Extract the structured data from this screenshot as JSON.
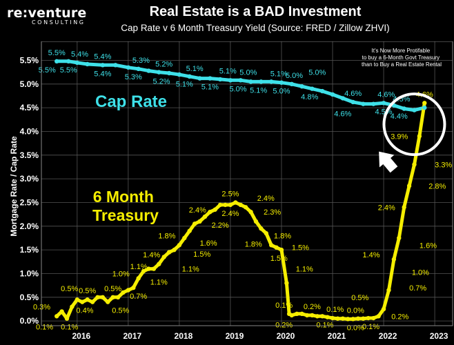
{
  "brand": {
    "name": "re:venture",
    "sub": "CONSULTING"
  },
  "chart_data": {
    "type": "line",
    "title": "Real Estate is a BAD Investment",
    "subtitle": "Cap Rate v 6 Month Treasury Yield (Source: FRED / Zillow ZHVI)",
    "xlabel": "",
    "ylabel": "Mortgage Rate / Cap Rate",
    "xlim": [
      2015.3,
      2023.35
    ],
    "ylim": [
      -0.1,
      5.9
    ],
    "x_ticks": [
      2016,
      2017,
      2018,
      2019,
      2020,
      2021,
      2022,
      2023
    ],
    "y_ticks": [
      0.0,
      0.5,
      1.0,
      1.5,
      2.0,
      2.5,
      3.0,
      3.5,
      4.0,
      4.5,
      5.0,
      5.5
    ],
    "y_tick_labels": [
      "0.0%",
      "0.5%",
      "1.0%",
      "1.5%",
      "2.0%",
      "2.5%",
      "3.0%",
      "3.5%",
      "4.0%",
      "4.5%",
      "5.0%",
      "5.5%"
    ],
    "series": [
      {
        "name": "Cap Rate",
        "label_text": "Cap Rate",
        "color": "#3ee0e8",
        "x": [
          2015.6,
          2015.83,
          2016.0,
          2016.2,
          2016.5,
          2016.75,
          2017.0,
          2017.2,
          2017.4,
          2017.6,
          2017.8,
          2018.0,
          2018.2,
          2018.4,
          2018.6,
          2018.8,
          2019.0,
          2019.2,
          2019.4,
          2019.6,
          2019.8,
          2020.0,
          2020.2,
          2020.4,
          2020.6,
          2020.8,
          2021.0,
          2021.2,
          2021.4,
          2021.6,
          2021.8,
          2022.0,
          2022.2,
          2022.4,
          2022.6,
          2022.8
        ],
        "values": [
          5.48,
          5.48,
          5.45,
          5.42,
          5.4,
          5.4,
          5.35,
          5.32,
          5.28,
          5.25,
          5.23,
          5.2,
          5.16,
          5.12,
          5.12,
          5.1,
          5.08,
          5.08,
          5.05,
          5.05,
          5.05,
          5.03,
          5.0,
          4.95,
          4.9,
          4.85,
          4.78,
          4.7,
          4.62,
          4.58,
          4.58,
          4.6,
          4.55,
          4.48,
          4.45,
          4.5
        ]
      },
      {
        "name": "6 Month Treasury",
        "label_text": "6 Month Treasury",
        "color": "#f5ee00",
        "x": [
          2015.6,
          2015.7,
          2015.8,
          2015.9,
          2016.0,
          2016.1,
          2016.2,
          2016.3,
          2016.4,
          2016.5,
          2016.6,
          2016.7,
          2016.8,
          2016.9,
          2017.0,
          2017.1,
          2017.2,
          2017.3,
          2017.4,
          2017.5,
          2017.6,
          2017.7,
          2017.8,
          2017.9,
          2018.0,
          2018.1,
          2018.2,
          2018.3,
          2018.4,
          2018.5,
          2018.6,
          2018.7,
          2018.8,
          2018.9,
          2019.0,
          2019.1,
          2019.2,
          2019.3,
          2019.4,
          2019.5,
          2019.6,
          2019.7,
          2019.8,
          2019.9,
          2020.0,
          2020.1,
          2020.15,
          2020.2,
          2020.3,
          2020.4,
          2020.5,
          2020.6,
          2020.7,
          2020.8,
          2020.9,
          2021.0,
          2021.1,
          2021.2,
          2021.3,
          2021.4,
          2021.5,
          2021.6,
          2021.7,
          2021.8,
          2021.9,
          2022.0,
          2022.1,
          2022.2,
          2022.3,
          2022.4,
          2022.5,
          2022.6,
          2022.7,
          2022.8
        ],
        "values": [
          0.1,
          0.2,
          0.05,
          0.3,
          0.45,
          0.4,
          0.45,
          0.4,
          0.5,
          0.5,
          0.4,
          0.5,
          0.5,
          0.6,
          0.65,
          0.7,
          0.9,
          1.05,
          1.1,
          1.1,
          1.2,
          1.35,
          1.45,
          1.5,
          1.6,
          1.75,
          1.9,
          2.05,
          2.1,
          2.2,
          2.3,
          2.35,
          2.45,
          2.45,
          2.45,
          2.5,
          2.45,
          2.4,
          2.3,
          2.1,
          1.95,
          1.85,
          1.6,
          1.55,
          1.5,
          0.8,
          0.15,
          0.12,
          0.15,
          0.15,
          0.12,
          0.12,
          0.1,
          0.1,
          0.08,
          0.06,
          0.05,
          0.05,
          0.04,
          0.04,
          0.05,
          0.05,
          0.06,
          0.06,
          0.1,
          0.25,
          0.65,
          1.3,
          1.75,
          2.4,
          2.85,
          3.3,
          3.9,
          4.6
        ]
      }
    ],
    "data_labels": [
      {
        "series": "Cap Rate",
        "text": "5.5%",
        "x": 2015.6,
        "y": 5.48,
        "pos": "above"
      },
      {
        "series": "Cap Rate",
        "text": "5.5%",
        "x": 2015.6,
        "y": 5.48,
        "pos": "below-left"
      },
      {
        "series": "Cap Rate",
        "text": "5.5%",
        "x": 2015.83,
        "y": 5.48,
        "pos": "below"
      },
      {
        "series": "Cap Rate",
        "text": "5.4%",
        "x": 2016.05,
        "y": 5.45,
        "pos": "above"
      },
      {
        "series": "Cap Rate",
        "text": "5.4%",
        "x": 2016.5,
        "y": 5.4,
        "pos": "above"
      },
      {
        "series": "Cap Rate",
        "text": "5.4%",
        "x": 2016.5,
        "y": 5.4,
        "pos": "below"
      },
      {
        "series": "Cap Rate",
        "text": "5.3%",
        "x": 2017.25,
        "y": 5.32,
        "pos": "above"
      },
      {
        "series": "Cap Rate",
        "text": "5.3%",
        "x": 2017.1,
        "y": 5.33,
        "pos": "below"
      },
      {
        "series": "Cap Rate",
        "text": "5.2%",
        "x": 2017.7,
        "y": 5.24,
        "pos": "above"
      },
      {
        "series": "Cap Rate",
        "text": "5.2%",
        "x": 2017.65,
        "y": 5.24,
        "pos": "below"
      },
      {
        "series": "Cap Rate",
        "text": "5.1%",
        "x": 2018.3,
        "y": 5.14,
        "pos": "above"
      },
      {
        "series": "Cap Rate",
        "text": "5.1%",
        "x": 2018.1,
        "y": 5.18,
        "pos": "below"
      },
      {
        "series": "Cap Rate",
        "text": "5.1%",
        "x": 2018.95,
        "y": 5.09,
        "pos": "above"
      },
      {
        "series": "Cap Rate",
        "text": "5.1%",
        "x": 2018.6,
        "y": 5.12,
        "pos": "below"
      },
      {
        "series": "Cap Rate",
        "text": "5.0%",
        "x": 2019.35,
        "y": 5.06,
        "pos": "above"
      },
      {
        "series": "Cap Rate",
        "text": "5.0%",
        "x": 2019.15,
        "y": 5.08,
        "pos": "below"
      },
      {
        "series": "Cap Rate",
        "text": "5.1%",
        "x": 2019.55,
        "y": 5.05,
        "pos": "below"
      },
      {
        "series": "Cap Rate",
        "text": "5.1%",
        "x": 2019.95,
        "y": 5.03,
        "pos": "above"
      },
      {
        "series": "Cap Rate",
        "text": "5.0%",
        "x": 2020.25,
        "y": 5.0,
        "pos": "above"
      },
      {
        "series": "Cap Rate",
        "text": "5.0%",
        "x": 2020.0,
        "y": 5.03,
        "pos": "below"
      },
      {
        "series": "Cap Rate",
        "text": "5.0%",
        "x": 2020.7,
        "y": 4.9,
        "pos": "above-high"
      },
      {
        "series": "Cap Rate",
        "text": "4.8%",
        "x": 2020.55,
        "y": 4.91,
        "pos": "below"
      },
      {
        "series": "Cap Rate",
        "text": "4.6%",
        "x": 2021.4,
        "y": 4.62,
        "pos": "above"
      },
      {
        "series": "Cap Rate",
        "text": "4.6%",
        "x": 2021.2,
        "y": 4.7,
        "pos": "below-far"
      },
      {
        "series": "Cap Rate",
        "text": "4.6%",
        "x": 2022.05,
        "y": 4.6,
        "pos": "above"
      },
      {
        "series": "Cap Rate",
        "text": "4.5%",
        "x": 2022.35,
        "y": 4.5,
        "pos": "above"
      },
      {
        "series": "Cap Rate",
        "text": "4.5%",
        "x": 2022.0,
        "y": 4.6,
        "pos": "below"
      },
      {
        "series": "Cap Rate",
        "text": "4.4%",
        "x": 2022.3,
        "y": 4.5,
        "pos": "below"
      },
      {
        "series": "6 Month Treasury",
        "text": "4.6%",
        "x": 2022.8,
        "y": 4.6,
        "pos": "above"
      },
      {
        "series": "6 Month Treasury",
        "text": "3.9%",
        "x": 2022.55,
        "y": 3.9,
        "pos": "left"
      },
      {
        "series": "6 Month Treasury",
        "text": "3.3%",
        "x": 2022.9,
        "y": 3.3,
        "pos": "right"
      },
      {
        "series": "6 Month Treasury",
        "text": "2.8%",
        "x": 2022.78,
        "y": 2.85,
        "pos": "right"
      },
      {
        "series": "6 Month Treasury",
        "text": "2.4%",
        "x": 2022.3,
        "y": 2.4,
        "pos": "left"
      },
      {
        "series": "6 Month Treasury",
        "text": "1.6%",
        "x": 2022.6,
        "y": 1.6,
        "pos": "right"
      },
      {
        "series": "6 Month Treasury",
        "text": "1.4%",
        "x": 2022.0,
        "y": 1.4,
        "pos": "left"
      },
      {
        "series": "6 Month Treasury",
        "text": "1.0%",
        "x": 2022.45,
        "y": 1.03,
        "pos": "right"
      },
      {
        "series": "6 Month Treasury",
        "text": "0.7%",
        "x": 2022.4,
        "y": 0.7,
        "pos": "right"
      },
      {
        "series": "6 Month Treasury",
        "text": "0.5%",
        "x": 2021.78,
        "y": 0.5,
        "pos": "left"
      },
      {
        "series": "6 Month Treasury",
        "text": "0.2%",
        "x": 2022.05,
        "y": 0.1,
        "pos": "right"
      },
      {
        "series": "6 Month Treasury",
        "text": "0.1%",
        "x": 2021.75,
        "y": 0.06,
        "pos": "below"
      },
      {
        "series": "6 Month Treasury",
        "text": "0.0%",
        "x": 2021.45,
        "y": 0.04,
        "pos": "below"
      },
      {
        "series": "6 Month Treasury",
        "text": "0.0%",
        "x": 2021.45,
        "y": 0.04,
        "pos": "above"
      },
      {
        "series": "6 Month Treasury",
        "text": "0.1%",
        "x": 2021.05,
        "y": 0.06,
        "pos": "above"
      },
      {
        "series": "6 Month Treasury",
        "text": "0.2%",
        "x": 2020.6,
        "y": 0.12,
        "pos": "above"
      },
      {
        "series": "6 Month Treasury",
        "text": "0.1%",
        "x": 2020.85,
        "y": 0.1,
        "pos": "below"
      },
      {
        "series": "6 Month Treasury",
        "text": "0.1%",
        "x": 2020.05,
        "y": 0.15,
        "pos": "above"
      },
      {
        "series": "6 Month Treasury",
        "text": "0.2%",
        "x": 2020.05,
        "y": 0.1,
        "pos": "below"
      },
      {
        "series": "6 Month Treasury",
        "text": "1.1%",
        "x": 2020.18,
        "y": 1.1,
        "pos": "right"
      },
      {
        "series": "6 Month Treasury",
        "text": "1.5%",
        "x": 2020.1,
        "y": 1.55,
        "pos": "right"
      },
      {
        "series": "6 Month Treasury",
        "text": "1.5%",
        "x": 2019.95,
        "y": 1.5,
        "pos": "below"
      },
      {
        "series": "6 Month Treasury",
        "text": "1.8%",
        "x": 2019.75,
        "y": 1.8,
        "pos": "right"
      },
      {
        "series": "6 Month Treasury",
        "text": "1.8%",
        "x": 2019.45,
        "y": 1.8,
        "pos": "below"
      },
      {
        "series": "6 Month Treasury",
        "text": "2.3%",
        "x": 2019.55,
        "y": 2.3,
        "pos": "right"
      },
      {
        "series": "6 Month Treasury",
        "text": "2.4%",
        "x": 2019.45,
        "y": 2.45,
        "pos": "right-up"
      },
      {
        "series": "6 Month Treasury",
        "text": "2.5%",
        "x": 2019.0,
        "y": 2.5,
        "pos": "above"
      },
      {
        "series": "6 Month Treasury",
        "text": "2.4%",
        "x": 2019.0,
        "y": 2.45,
        "pos": "below"
      },
      {
        "series": "6 Month Treasury",
        "text": "2.4%",
        "x": 2018.6,
        "y": 2.35,
        "pos": "left"
      },
      {
        "series": "6 Month Treasury",
        "text": "2.2%",
        "x": 2018.8,
        "y": 2.2,
        "pos": "below"
      },
      {
        "series": "6 Month Treasury",
        "text": "1.8%",
        "x": 2018.0,
        "y": 1.8,
        "pos": "left"
      },
      {
        "series": "6 Month Treasury",
        "text": "1.6%",
        "x": 2018.3,
        "y": 1.65,
        "pos": "right"
      },
      {
        "series": "6 Month Treasury",
        "text": "1.5%",
        "x": 2018.2,
        "y": 1.5,
        "pos": "right-low"
      },
      {
        "series": "6 Month Treasury",
        "text": "1.4%",
        "x": 2017.7,
        "y": 1.4,
        "pos": "left"
      },
      {
        "series": "6 Month Treasury",
        "text": "1.1%",
        "x": 2017.45,
        "y": 1.15,
        "pos": "left"
      },
      {
        "series": "6 Month Treasury",
        "text": "1.1%",
        "x": 2017.6,
        "y": 1.0,
        "pos": "below"
      },
      {
        "series": "6 Month Treasury",
        "text": "1.1%",
        "x": 2017.95,
        "y": 1.1,
        "pos": "right"
      },
      {
        "series": "6 Month Treasury",
        "text": "1.0%",
        "x": 2017.1,
        "y": 1.0,
        "pos": "left"
      },
      {
        "series": "6 Month Treasury",
        "text": "0.7%",
        "x": 2017.2,
        "y": 0.7,
        "pos": "below"
      },
      {
        "series": "6 Month Treasury",
        "text": "0.5%",
        "x": 2016.7,
        "y": 0.5,
        "pos": "above"
      },
      {
        "series": "6 Month Treasury",
        "text": "0.5%",
        "x": 2016.85,
        "y": 0.4,
        "pos": "below"
      },
      {
        "series": "6 Month Treasury",
        "text": "0.5%",
        "x": 2016.2,
        "y": 0.45,
        "pos": "above"
      },
      {
        "series": "6 Month Treasury",
        "text": "0.4%",
        "x": 2016.15,
        "y": 0.4,
        "pos": "below"
      },
      {
        "series": "6 Month Treasury",
        "text": "0.5%",
        "x": 2015.85,
        "y": 0.5,
        "pos": "above"
      },
      {
        "series": "6 Month Treasury",
        "text": "0.3%",
        "x": 2015.55,
        "y": 0.3,
        "pos": "left"
      },
      {
        "series": "6 Month Treasury",
        "text": "0.1%",
        "x": 2015.55,
        "y": 0.05,
        "pos": "below-left"
      },
      {
        "series": "6 Month Treasury",
        "text": "0.1%",
        "x": 2015.85,
        "y": 0.05,
        "pos": "below"
      }
    ],
    "annotations": [
      {
        "text_lines": [
          "It's Now More Protifable",
          "to buy a 6-Month Govt Treasury",
          "than to Buy a Real Estate Rental"
        ],
        "placement": "top-right"
      },
      {
        "type": "circle",
        "target_x": 2022.6,
        "target_y": 4.15
      },
      {
        "type": "arrow",
        "direction": "up-right"
      }
    ],
    "grid": true
  }
}
